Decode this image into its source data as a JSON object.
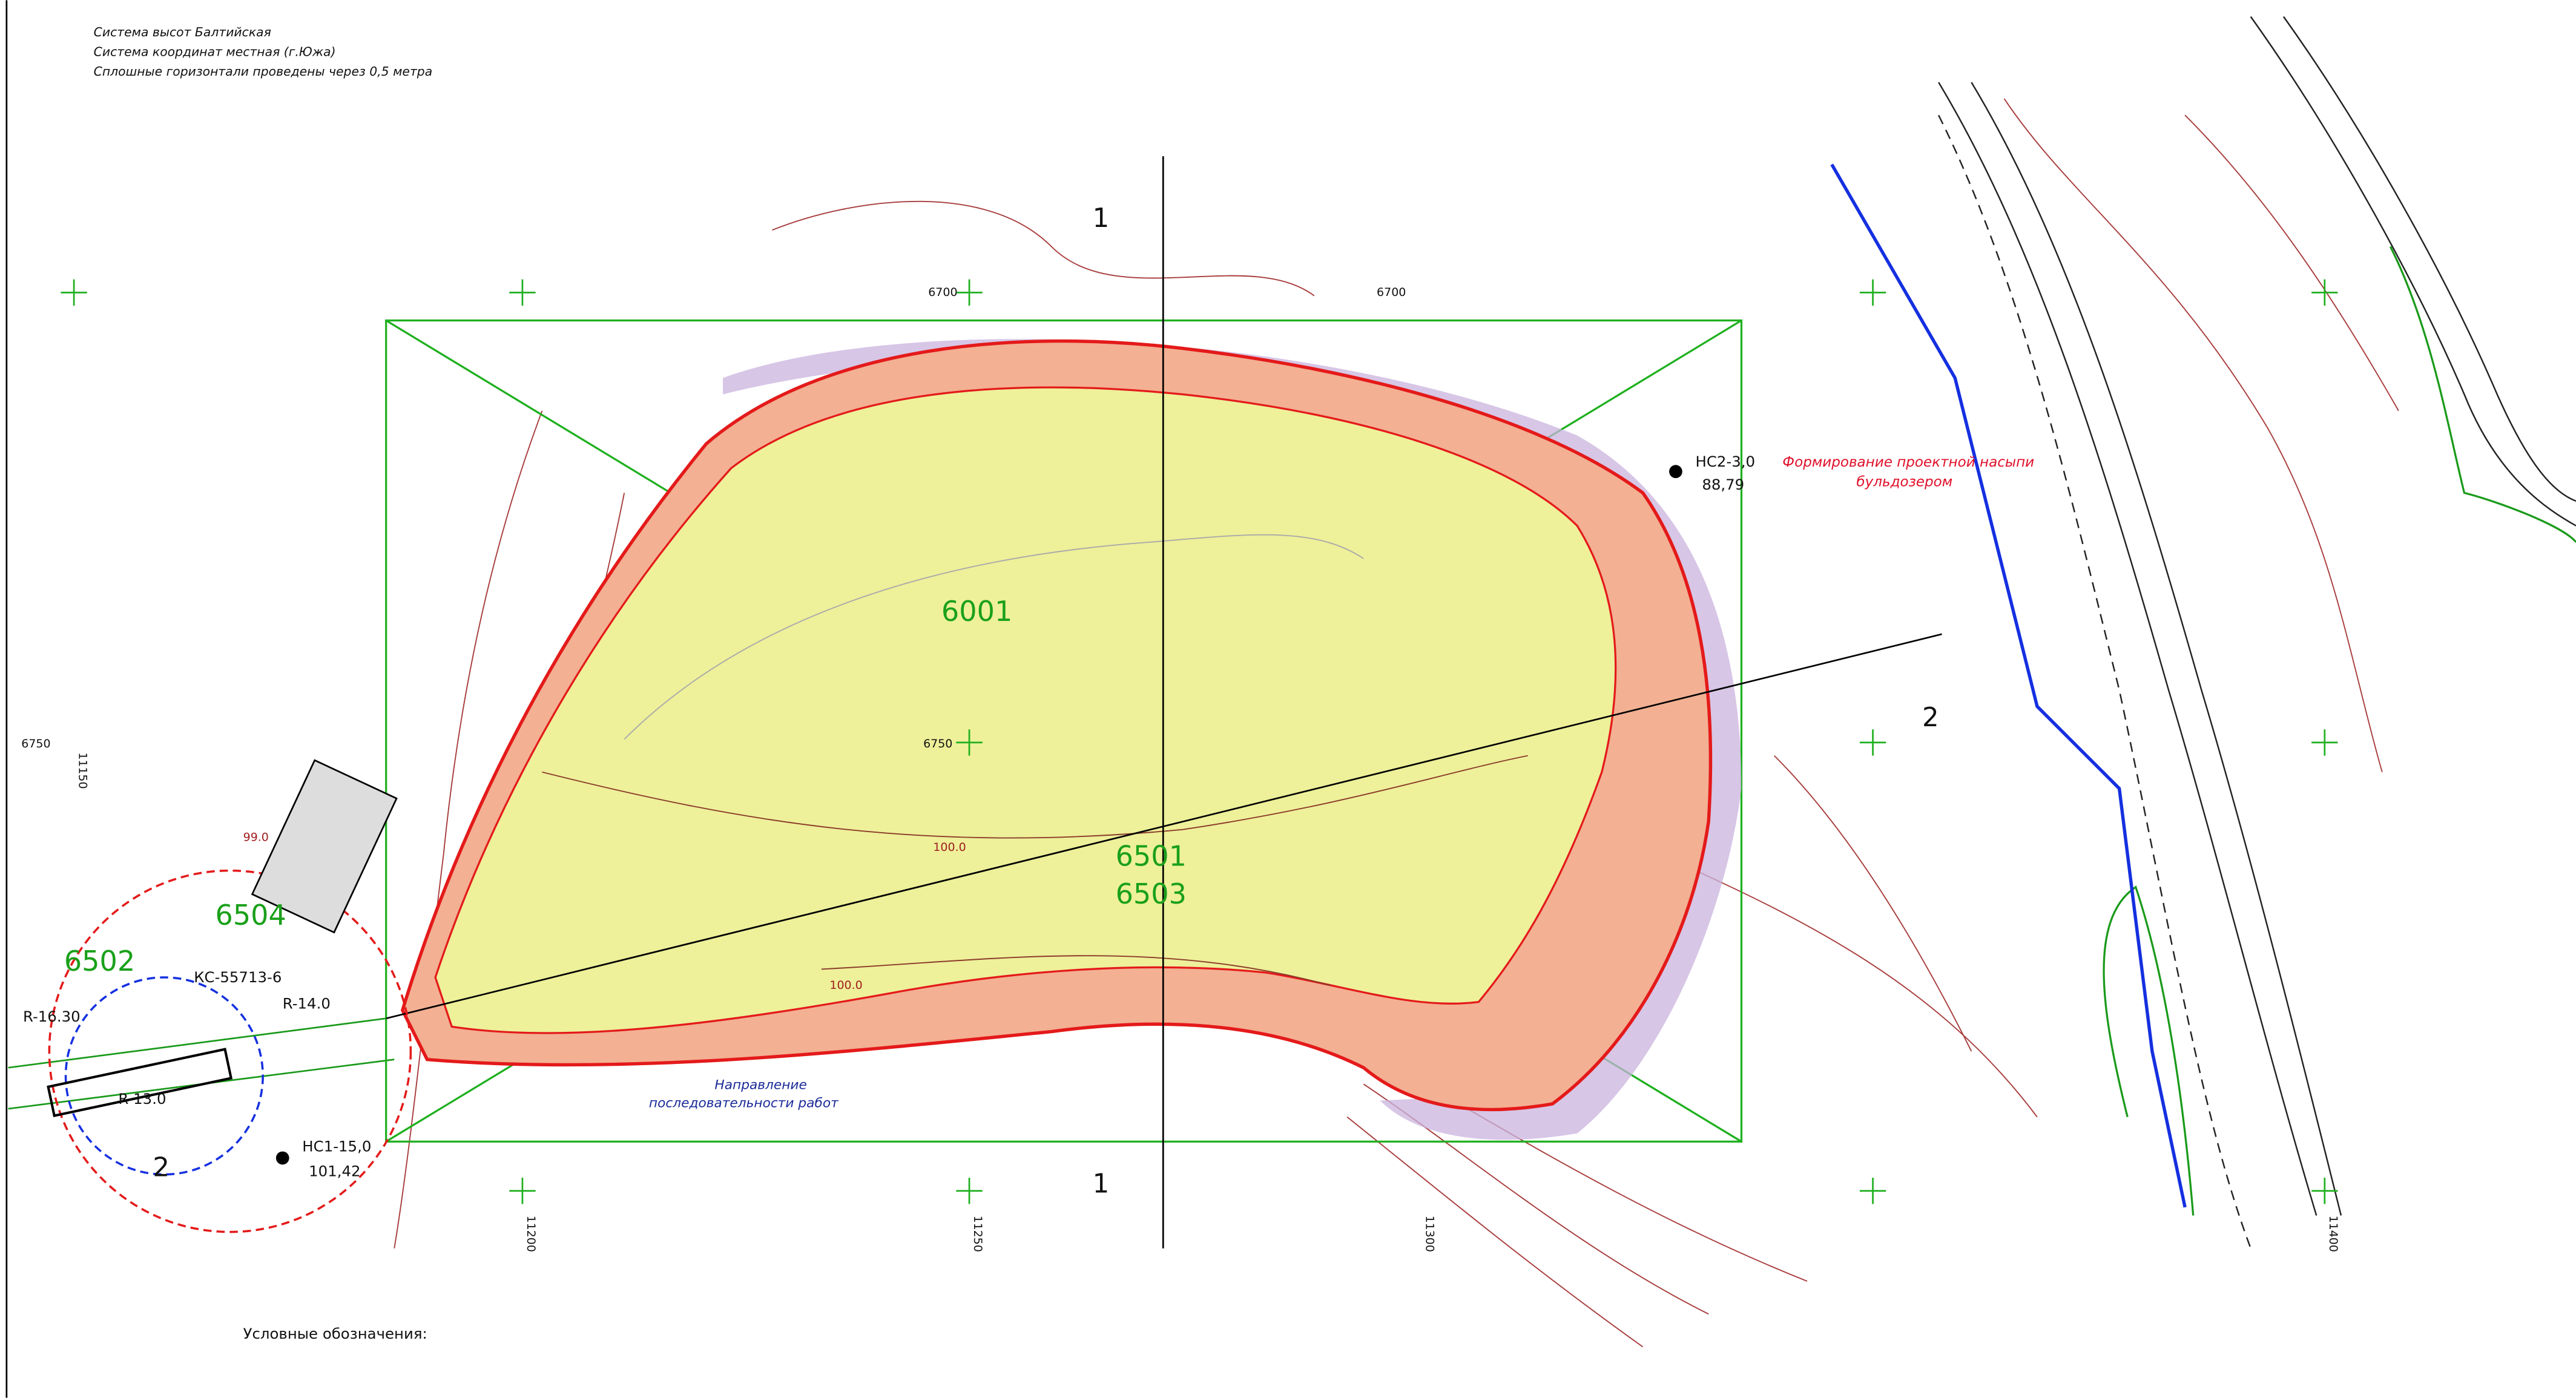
{
  "notes": [
    "Система высот Балтийская",
    "Система координат местная (г.Южа)",
    "Сплошные горизонтали проведены через 0,5 метра"
  ],
  "zones": [
    "6001",
    "6501",
    "6503",
    "6504",
    "6502"
  ],
  "points": [
    {
      "label": "НС2-3,0",
      "elevation": "88,79"
    },
    {
      "label": "НС1-15,0",
      "elevation": "101,42"
    }
  ],
  "annotations": {
    "embankment": [
      "Формирование проектной насыпи",
      "бульдозером"
    ],
    "direction": [
      "Направление",
      "последовательности работ"
    ],
    "crane": "КС-55713-6",
    "radii": [
      "R-16.30",
      "R-14.0",
      "R-13.0"
    ]
  },
  "sections": [
    "1",
    "1",
    "2",
    "2"
  ],
  "grid_labels": [
    "6700",
    "6700",
    "6750",
    "6750",
    "11150",
    "11200",
    "11250",
    "11300",
    "11400"
  ],
  "contours": [
    "100.0",
    "100.0",
    "99.0"
  ],
  "legend": {
    "title": "Условные обозначения:"
  }
}
